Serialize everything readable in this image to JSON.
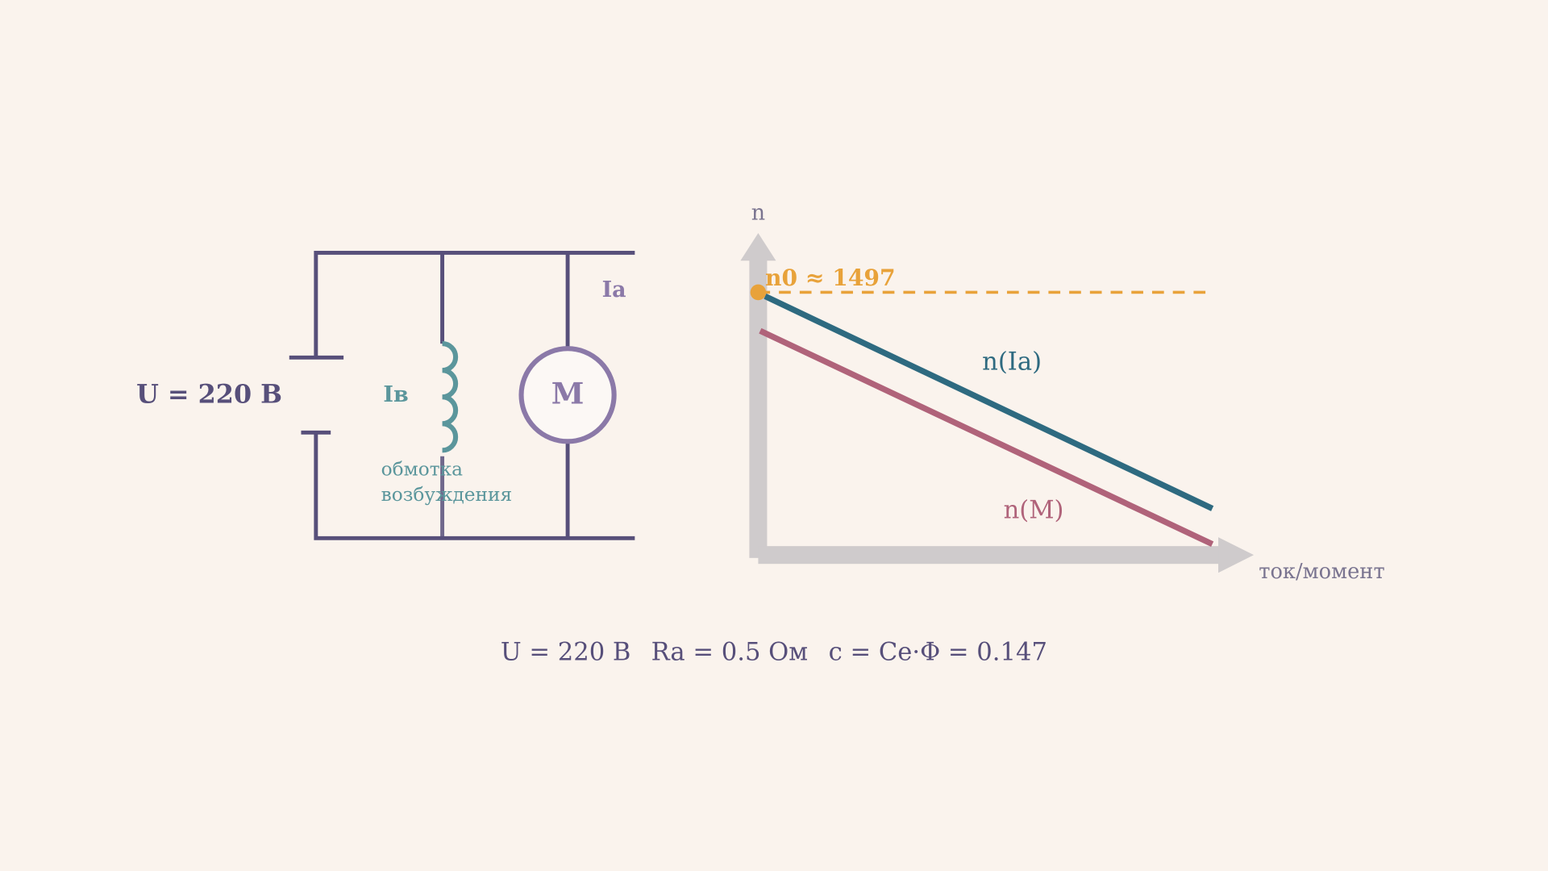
{
  "circuit": {
    "voltage_label": "U = 220 В",
    "field_current": "Iв",
    "armature_current": "Ia",
    "motor": "M",
    "field_winding": [
      "обмотка",
      "возбуждения"
    ]
  },
  "graph": {
    "y_axis": "n",
    "x_axis": "ток/момент",
    "n0_label": "n0 ≈ 1497",
    "curves": [
      "n(Ia)",
      "n(M)"
    ]
  },
  "footer": [
    "U = 220 В",
    "Ra = 0.5 Ом",
    "c = Ce·Φ = 0.147"
  ]
}
